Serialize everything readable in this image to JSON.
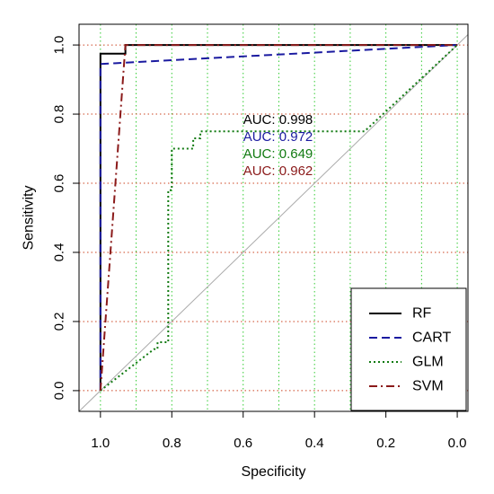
{
  "chart_data": {
    "type": "line",
    "xlabel": "Specificity",
    "ylabel": "Sensitivity",
    "xlim": [
      1.06,
      -0.03
    ],
    "ylim": [
      -0.06,
      1.06
    ],
    "x_reversed": true,
    "x_ticks": [
      "1.0",
      "0.8",
      "0.6",
      "0.4",
      "0.2",
      "0.0"
    ],
    "y_ticks": [
      "0.0",
      "0.2",
      "0.4",
      "0.6",
      "0.8",
      "1.0"
    ],
    "grid": true,
    "grid_color_vertical": "#33cc33",
    "grid_color_horizontal": "#cc4422",
    "diagonal_color": "#aaaaaa",
    "legend_position": "bottom-right",
    "series": [
      {
        "name": "RF",
        "color": "#000000",
        "dash": "solid",
        "x": [
          1.0,
          1.0,
          0.93,
          0.93,
          0.0
        ],
        "y": [
          0.0,
          0.975,
          0.975,
          1.0,
          1.0
        ]
      },
      {
        "name": "CART",
        "color": "#1a1aa0",
        "dash": "dashed",
        "x": [
          1.0,
          1.0,
          0.0
        ],
        "y": [
          0.0,
          0.945,
          1.0
        ]
      },
      {
        "name": "GLM",
        "color": "#117a11",
        "dash": "dotted",
        "x": [
          1.0,
          0.85,
          0.84,
          0.84,
          0.81,
          0.81,
          0.8,
          0.8,
          0.74,
          0.74,
          0.72,
          0.72,
          0.26,
          0.0
        ],
        "y": [
          0.0,
          0.12,
          0.12,
          0.14,
          0.14,
          0.58,
          0.58,
          0.7,
          0.7,
          0.73,
          0.73,
          0.75,
          0.75,
          1.0
        ]
      },
      {
        "name": "SVM",
        "color": "#8b1a1a",
        "dash": "dashdot",
        "x": [
          1.0,
          0.93,
          0.0
        ],
        "y": [
          0.0,
          1.0,
          1.0
        ]
      }
    ],
    "annotations": [
      {
        "text": "AUC: 0.998",
        "color": "#000000"
      },
      {
        "text": "AUC: 0.972",
        "color": "#1a1aa0"
      },
      {
        "text": "AUC: 0.649",
        "color": "#117a11"
      },
      {
        "text": "AUC: 0.962",
        "color": "#8b1a1a"
      }
    ]
  }
}
